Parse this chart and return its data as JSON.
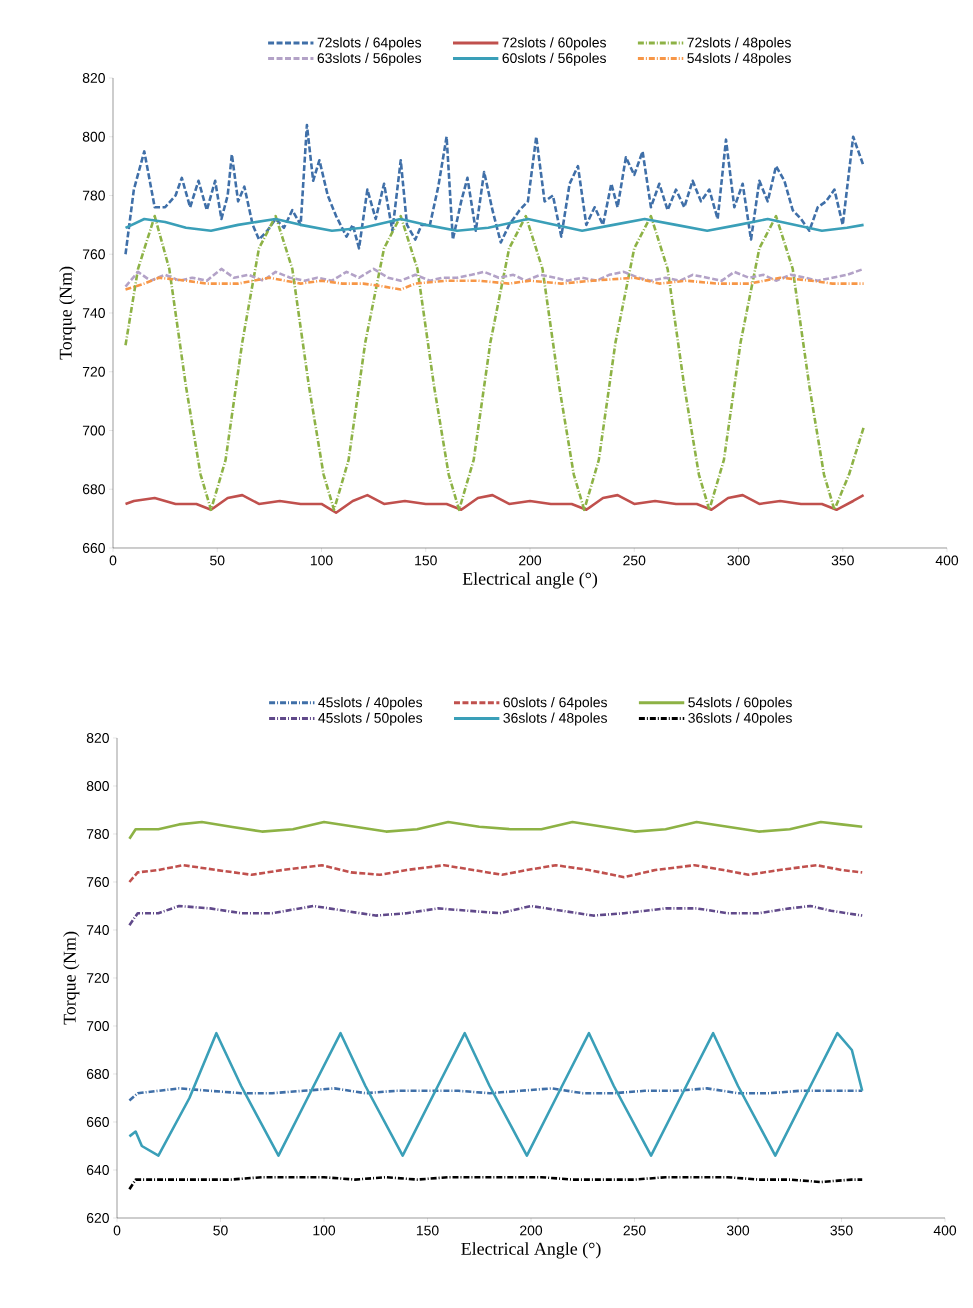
{
  "chart_data": [
    {
      "type": "line",
      "xlabel": "Electrical angle (°)",
      "ylabel": "Torque (Nm)",
      "xlim": [
        0,
        400
      ],
      "xticks": [
        0,
        50,
        100,
        150,
        200,
        250,
        300,
        350,
        400
      ],
      "ylim": [
        660,
        820
      ],
      "yticks": [
        660,
        680,
        700,
        720,
        740,
        760,
        780,
        800,
        820
      ],
      "legend": "top",
      "series": [
        {
          "name": "72slots / 64poles",
          "color": "#3f6fa8",
          "line_style": "dashed",
          "x": [
            6,
            10,
            15,
            20,
            25,
            30,
            33,
            37,
            41,
            45,
            49,
            52,
            55,
            57,
            60,
            63,
            67,
            70,
            74,
            78,
            82,
            86,
            90,
            93,
            96,
            99,
            103,
            107,
            112,
            115,
            118,
            122,
            126,
            130,
            134,
            138,
            141,
            145,
            148,
            152,
            156,
            160,
            163,
            167,
            170,
            174,
            178,
            182,
            186,
            190,
            195,
            199,
            203,
            207,
            211,
            215,
            219,
            223,
            227,
            231,
            235,
            239,
            242,
            246,
            250,
            254,
            258,
            262,
            266,
            270,
            274,
            278,
            282,
            286,
            290,
            294,
            298,
            302,
            306,
            310,
            314,
            318,
            322,
            326,
            330,
            334,
            338,
            342,
            346,
            350,
            355,
            360
          ],
          "values": [
            760,
            782,
            795,
            776,
            776,
            780,
            786,
            776,
            785,
            775,
            785,
            772,
            780,
            794,
            778,
            783,
            770,
            765,
            768,
            772,
            769,
            775,
            770,
            804,
            785,
            792,
            780,
            773,
            766,
            770,
            762,
            782,
            772,
            784,
            768,
            792,
            770,
            765,
            770,
            770,
            783,
            800,
            765,
            778,
            786,
            768,
            788,
            775,
            764,
            770,
            775,
            778,
            800,
            778,
            780,
            766,
            784,
            790,
            770,
            776,
            770,
            784,
            776,
            793,
            787,
            795,
            776,
            784,
            775,
            782,
            776,
            785,
            778,
            782,
            772,
            799,
            776,
            784,
            765,
            785,
            778,
            790,
            785,
            775,
            772,
            768,
            776,
            778,
            782,
            770,
            800,
            790
          ]
        },
        {
          "name": "72slots / 60poles",
          "color": "#c0504d",
          "line_style": "solid",
          "x": [
            6,
            10,
            20,
            30,
            40,
            47,
            55,
            62,
            70,
            80,
            90,
            100,
            107,
            115,
            122,
            130,
            140,
            150,
            160,
            167,
            175,
            182,
            190,
            200,
            210,
            220,
            227,
            235,
            242,
            250,
            260,
            270,
            280,
            287,
            295,
            302,
            310,
            320,
            330,
            340,
            347,
            355,
            360
          ],
          "values": [
            675,
            676,
            677,
            675,
            675,
            673,
            677,
            678,
            675,
            676,
            675,
            675,
            672,
            676,
            678,
            675,
            676,
            675,
            675,
            673,
            677,
            678,
            675,
            676,
            675,
            675,
            673,
            677,
            678,
            675,
            676,
            675,
            675,
            673,
            677,
            678,
            675,
            676,
            675,
            675,
            673,
            676,
            678
          ]
        },
        {
          "name": "72slots / 48poles",
          "color": "#8db245",
          "line_style": "dashdot",
          "x": [
            6,
            12,
            20,
            27,
            35,
            42,
            47,
            54,
            62,
            70,
            78,
            86,
            94,
            101,
            106,
            113,
            121,
            130,
            138,
            146,
            154,
            161,
            166,
            173,
            181,
            190,
            198,
            206,
            214,
            221,
            226,
            233,
            241,
            250,
            258,
            266,
            274,
            281,
            286,
            293,
            301,
            310,
            318,
            326,
            334,
            341,
            346,
            353,
            360
          ],
          "values": [
            729,
            755,
            773,
            755,
            715,
            685,
            673,
            690,
            730,
            762,
            773,
            755,
            715,
            685,
            673,
            690,
            730,
            762,
            773,
            755,
            715,
            685,
            673,
            690,
            730,
            762,
            773,
            755,
            715,
            685,
            673,
            690,
            730,
            762,
            773,
            755,
            715,
            685,
            673,
            690,
            730,
            762,
            773,
            755,
            715,
            685,
            673,
            685,
            701
          ]
        },
        {
          "name": "63slots / 56poles",
          "color": "#b3a2c7",
          "line_style": "dashed",
          "x": [
            6,
            12,
            18,
            25,
            32,
            38,
            45,
            52,
            58,
            65,
            72,
            78,
            85,
            92,
            98,
            105,
            112,
            118,
            125,
            132,
            138,
            145,
            152,
            158,
            165,
            172,
            178,
            185,
            192,
            198,
            205,
            212,
            218,
            225,
            232,
            238,
            245,
            252,
            258,
            265,
            272,
            278,
            285,
            292,
            298,
            305,
            312,
            318,
            325,
            332,
            338,
            345,
            352,
            360
          ],
          "values": [
            749,
            754,
            751,
            753,
            751,
            752,
            751,
            755,
            752,
            753,
            751,
            754,
            752,
            751,
            752,
            751,
            754,
            752,
            755,
            752,
            751,
            753,
            751,
            752,
            752,
            753,
            754,
            752,
            753,
            751,
            753,
            752,
            751,
            752,
            751,
            753,
            754,
            752,
            751,
            752,
            751,
            753,
            752,
            751,
            754,
            752,
            753,
            751,
            753,
            752,
            751,
            752,
            753,
            755
          ]
        },
        {
          "name": "60slots / 56poles",
          "color": "#3a9fb8",
          "line_style": "solid",
          "x": [
            6,
            15,
            25,
            35,
            47,
            60,
            78,
            90,
            105,
            120,
            138,
            150,
            165,
            180,
            199,
            212,
            225,
            240,
            255,
            270,
            285,
            300,
            314,
            327,
            340,
            352,
            360
          ],
          "values": [
            769,
            772,
            771,
            769,
            768,
            770,
            772,
            770,
            768,
            769,
            772,
            770,
            768,
            769,
            772,
            770,
            768,
            770,
            772,
            770,
            768,
            770,
            772,
            770,
            768,
            769,
            770
          ]
        },
        {
          "name": "54slots / 48poles",
          "color": "#f79646",
          "line_style": "dashdot",
          "x": [
            6,
            15,
            22,
            35,
            45,
            60,
            75,
            90,
            100,
            110,
            120,
            130,
            138,
            145,
            160,
            175,
            190,
            200,
            215,
            230,
            250,
            262,
            275,
            290,
            305,
            320,
            335,
            345,
            360
          ],
          "values": [
            748,
            750,
            752,
            751,
            750,
            750,
            752,
            750,
            751,
            750,
            750,
            749,
            748,
            750,
            751,
            751,
            750,
            751,
            750,
            751,
            752,
            750,
            751,
            750,
            750,
            752,
            751,
            750,
            750
          ]
        }
      ]
    },
    {
      "type": "line",
      "xlabel": "Electrical Angle (°)",
      "ylabel": "Torque (Nm)",
      "xlim": [
        0,
        400
      ],
      "xticks": [
        0,
        50,
        100,
        150,
        200,
        250,
        300,
        350,
        400
      ],
      "ylim": [
        620,
        820
      ],
      "yticks": [
        620,
        640,
        660,
        680,
        700,
        720,
        740,
        760,
        780,
        800,
        820
      ],
      "legend": "top",
      "series": [
        {
          "name": "45slots / 40poles",
          "color": "#3f6fa8",
          "line_style": "dashdot",
          "x": [
            6,
            10,
            20,
            30,
            45,
            60,
            75,
            90,
            105,
            120,
            135,
            150,
            165,
            180,
            195,
            210,
            225,
            240,
            255,
            270,
            285,
            300,
            315,
            330,
            345,
            360
          ],
          "values": [
            669,
            672,
            673,
            674,
            673,
            672,
            672,
            673,
            674,
            672,
            673,
            673,
            673,
            672,
            673,
            674,
            672,
            672,
            673,
            673,
            674,
            672,
            672,
            673,
            673,
            673
          ]
        },
        {
          "name": "60slots / 64poles",
          "color": "#c0504d",
          "line_style": "dashed",
          "x": [
            6,
            10,
            20,
            32,
            48,
            65,
            80,
            99,
            113,
            127,
            140,
            158,
            172,
            186,
            198,
            212,
            228,
            245,
            260,
            279,
            293,
            305,
            320,
            338,
            350,
            360
          ],
          "values": [
            760,
            764,
            765,
            767,
            765,
            763,
            765,
            767,
            764,
            763,
            765,
            767,
            765,
            763,
            765,
            767,
            765,
            762,
            765,
            767,
            765,
            763,
            765,
            767,
            765,
            764
          ]
        },
        {
          "name": "54slots / 60poles",
          "color": "#8db245",
          "line_style": "solid",
          "x": [
            6,
            9,
            20,
            30,
            41,
            55,
            70,
            85,
            100,
            115,
            130,
            145,
            160,
            175,
            190,
            205,
            220,
            235,
            250,
            265,
            280,
            295,
            310,
            325,
            340,
            350,
            360
          ],
          "values": [
            778,
            782,
            782,
            784,
            785,
            783,
            781,
            782,
            785,
            783,
            781,
            782,
            785,
            783,
            782,
            782,
            785,
            783,
            781,
            782,
            785,
            783,
            781,
            782,
            785,
            784,
            783
          ]
        },
        {
          "name": "45slots / 50poles",
          "color": "#60498a",
          "line_style": "dashdot",
          "x": [
            6,
            10,
            20,
            30,
            45,
            60,
            75,
            95,
            110,
            125,
            140,
            155,
            170,
            185,
            200,
            215,
            230,
            245,
            265,
            280,
            295,
            310,
            325,
            335,
            345,
            360
          ],
          "values": [
            742,
            747,
            747,
            750,
            749,
            747,
            747,
            750,
            748,
            746,
            747,
            749,
            748,
            747,
            750,
            748,
            746,
            747,
            749,
            749,
            747,
            747,
            749,
            750,
            748,
            746
          ]
        },
        {
          "name": "36slots / 48poles",
          "color": "#3a9fb8",
          "line_style": "solid",
          "x": [
            6,
            9,
            12,
            20,
            35,
            48,
            60,
            78,
            95,
            108,
            120,
            138,
            155,
            168,
            180,
            198,
            215,
            228,
            240,
            258,
            275,
            288,
            300,
            318,
            335,
            348,
            355,
            360
          ],
          "values": [
            654,
            656,
            650,
            646,
            670,
            697,
            675,
            646,
            675,
            697,
            675,
            646,
            675,
            697,
            675,
            646,
            675,
            697,
            675,
            646,
            675,
            697,
            675,
            646,
            675,
            697,
            690,
            673
          ]
        },
        {
          "name": "36slots / 40poles",
          "color": "#000000",
          "line_style": "dashdot",
          "x": [
            6,
            9,
            20,
            40,
            55,
            70,
            85,
            100,
            115,
            130,
            145,
            160,
            175,
            190,
            205,
            220,
            235,
            250,
            265,
            280,
            295,
            310,
            325,
            340,
            355,
            360
          ],
          "values": [
            632,
            636,
            636,
            636,
            636,
            637,
            637,
            637,
            636,
            637,
            636,
            637,
            637,
            637,
            637,
            636,
            636,
            636,
            637,
            637,
            637,
            636,
            636,
            635,
            636,
            636
          ]
        }
      ]
    }
  ]
}
